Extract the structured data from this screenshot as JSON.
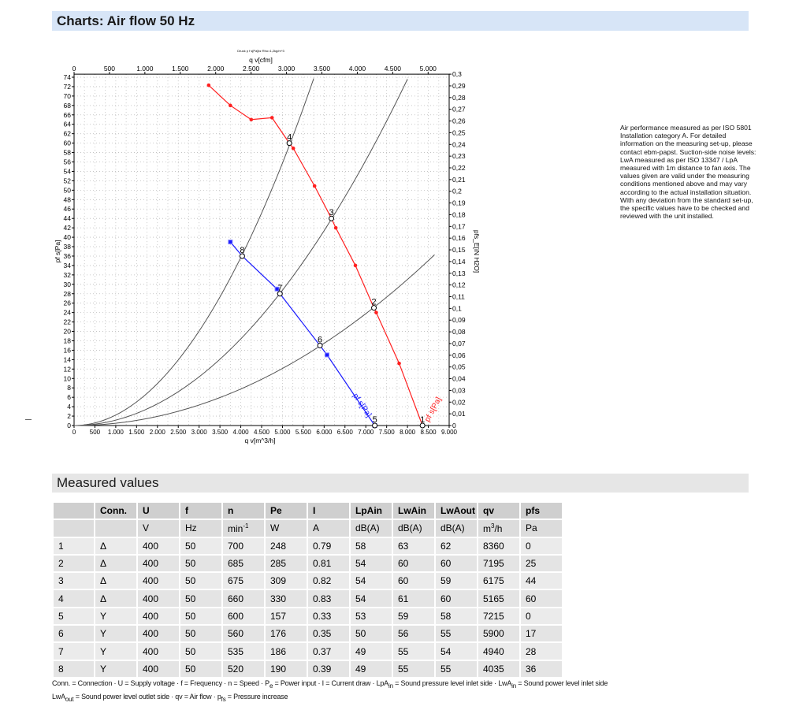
{
  "header": {
    "title": "Charts: Air flow 50 Hz"
  },
  "note": "Air performance measured as per ISO 5801 Installation category A. For detailed information on the measuring set-up, please contact ebm-papst. Suction-side noise levels: LwA measured as per ISO 13347 / LpA measured with 1m distance to fan axis. The values given are valid under the measuring conditions mentioned above and may vary according to the actual installation situation. With any deviation from the standard set-up, the specific values have to be checked and reviewed with the unit installed.",
  "chart_data": {
    "type": "line",
    "title": "Druck p f s[Pa]bz Rho=1,2kg/m^3",
    "xlabel": "q v[m^3/h]",
    "x2label": "q v[cfm]",
    "ylabel": "pf s[Pa]",
    "y2label": "pfs_E[iN H2O]",
    "xlim": [
      0,
      9000
    ],
    "ylim": [
      0,
      74
    ],
    "x2lim": [
      0,
      5300
    ],
    "y2lim": [
      0,
      0.3
    ],
    "xticks": [
      "0",
      "500",
      "1.000",
      "1.500",
      "2.000",
      "2.500",
      "3.000",
      "3.500",
      "4.000",
      "4.500",
      "5.000",
      "5.500",
      "6.000",
      "6.500",
      "7.000",
      "7.500",
      "8.000",
      "8.500",
      "9.000"
    ],
    "x2ticks": [
      "0",
      "500",
      "1.000",
      "1.500",
      "2.000",
      "2.500",
      "3.000",
      "3.500",
      "4.000",
      "4.500",
      "5.000"
    ],
    "y2ticks": [
      "0",
      "0,01",
      "0,02",
      "0,03",
      "0,04",
      "0,05",
      "0,06",
      "0,07",
      "0,08",
      "0,09",
      "0,1",
      "0,11",
      "0,12",
      "0,13",
      "0,14",
      "0,15",
      "0,16",
      "0,17",
      "0,18",
      "0,19",
      "0,2",
      "0,21",
      "0,22",
      "0,23",
      "0,24",
      "0,25",
      "0,26",
      "0,27",
      "0,28",
      "0,29",
      "0,3"
    ],
    "grid": true,
    "series": [
      {
        "name": "pf s[Pa]",
        "color": "#ff2020",
        "marker": "circle",
        "x": [
          3230,
          3750,
          4250,
          4750,
          5165,
          5260,
          5770,
          6175,
          6280,
          6750,
          7195,
          7250,
          7800,
          8360
        ],
        "y": [
          72.3,
          68,
          65,
          65.4,
          60,
          58.9,
          50.9,
          44,
          42,
          34,
          25,
          24,
          13.2,
          0
        ]
      },
      {
        "name": "pf s[Pa]",
        "color": "#1a1aff",
        "marker": "square",
        "x": [
          3750,
          4035,
          4870,
          4940,
          5900,
          6070,
          7215
        ],
        "y": [
          39,
          36,
          29,
          28,
          17,
          15,
          0
        ]
      }
    ],
    "system_curves": {
      "color": "#555555",
      "k": [
        2.23e-06,
        1.15e-06,
        4.85e-07
      ],
      "xmax": [
        5750,
        8000,
        8650
      ]
    },
    "operating_points": [
      {
        "label": "1",
        "x": 8360,
        "y": 0
      },
      {
        "label": "2",
        "x": 7195,
        "y": 25
      },
      {
        "label": "3",
        "x": 6175,
        "y": 44
      },
      {
        "label": "4",
        "x": 5165,
        "y": 60
      },
      {
        "label": "5",
        "x": 7215,
        "y": 0
      },
      {
        "label": "6",
        "x": 5900,
        "y": 17
      },
      {
        "label": "7",
        "x": 4940,
        "y": 28
      },
      {
        "label": "8",
        "x": 4035,
        "y": 36
      }
    ]
  },
  "measured": {
    "title": "Measured values",
    "headers": [
      "",
      "Conn.",
      "U",
      "f",
      "n",
      "Pe",
      "I",
      "LpAin",
      "LwAin",
      "LwAout",
      "qv",
      "pfs"
    ],
    "units": [
      "",
      "",
      "V",
      "Hz",
      "min-1",
      "W",
      "A",
      "dB(A)",
      "dB(A)",
      "dB(A)",
      "m3/h",
      "Pa"
    ],
    "rows": [
      [
        "1",
        "Δ",
        "400",
        "50",
        "700",
        "248",
        "0.79",
        "58",
        "63",
        "62",
        "8360",
        "0"
      ],
      [
        "2",
        "Δ",
        "400",
        "50",
        "685",
        "285",
        "0.81",
        "54",
        "60",
        "60",
        "7195",
        "25"
      ],
      [
        "3",
        "Δ",
        "400",
        "50",
        "675",
        "309",
        "0.82",
        "54",
        "60",
        "59",
        "6175",
        "44"
      ],
      [
        "4",
        "Δ",
        "400",
        "50",
        "660",
        "330",
        "0.83",
        "54",
        "61",
        "60",
        "5165",
        "60"
      ],
      [
        "5",
        "Y",
        "400",
        "50",
        "600",
        "157",
        "0.33",
        "53",
        "59",
        "58",
        "7215",
        "0"
      ],
      [
        "6",
        "Y",
        "400",
        "50",
        "560",
        "176",
        "0.35",
        "50",
        "56",
        "55",
        "5900",
        "17"
      ],
      [
        "7",
        "Y",
        "400",
        "50",
        "535",
        "186",
        "0.37",
        "49",
        "55",
        "54",
        "4940",
        "28"
      ],
      [
        "8",
        "Y",
        "400",
        "50",
        "520",
        "190",
        "0.39",
        "49",
        "55",
        "55",
        "4035",
        "36"
      ]
    ],
    "legend_line1": "Conn. = Connection · U = Supply voltage · f = Frequency · n = Speed · Pe = Power input · I = Current draw · LpAin = Sound pressure level inlet side · LwAin = Sound power level inlet side",
    "legend_line2": "LwAout = Sound power level outlet side · qv = Air flow · pfs = Pressure increase"
  }
}
